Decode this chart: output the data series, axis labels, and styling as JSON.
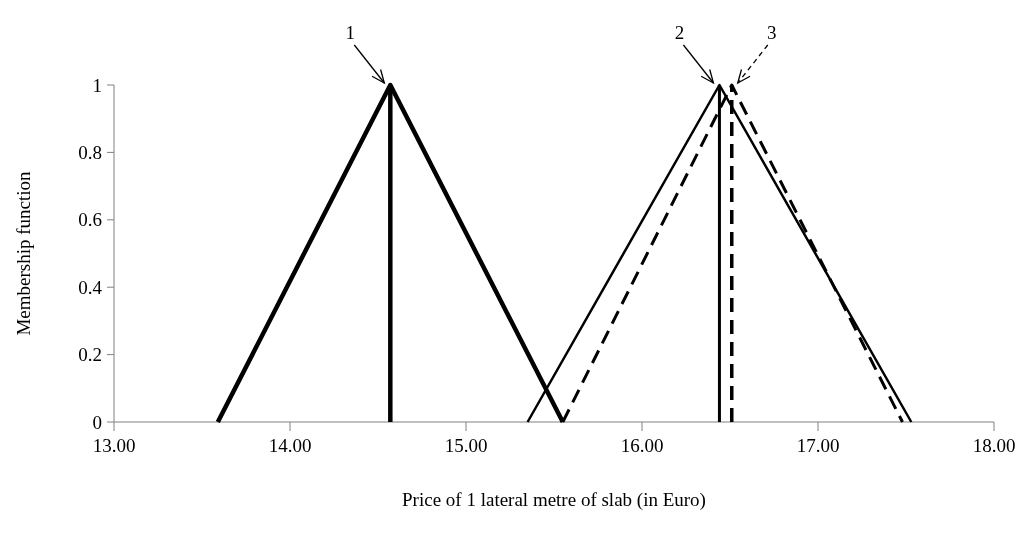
{
  "chart_data": {
    "type": "line",
    "xlabel": "Price of 1 lateral metre of slab (in Euro)",
    "ylabel": "Membership function",
    "xlim": [
      13,
      18
    ],
    "xticks": [
      {
        "value": 13,
        "label": "13.00"
      },
      {
        "value": 14,
        "label": "14.00"
      },
      {
        "value": 15,
        "label": "15.00"
      },
      {
        "value": 16,
        "label": "16.00"
      },
      {
        "value": 17,
        "label": "17.00"
      },
      {
        "value": 18,
        "label": "18.00"
      }
    ],
    "ylim": [
      0,
      1
    ],
    "yticks": [
      0,
      0.2,
      0.4,
      0.6,
      0.8,
      1
    ],
    "marker": "none",
    "series": [
      {
        "color": "#000000",
        "line_style": "solid",
        "x": [
          13.59,
          14.57,
          15.55
        ],
        "values": [
          0,
          1,
          0
        ]
      },
      {
        "color": "#000000",
        "line_style": "solid",
        "x": [
          14.57,
          14.57
        ],
        "values": [
          0,
          1
        ]
      },
      {
        "color": "#000000",
        "line_style": "solid",
        "x": [
          15.35,
          16.44,
          17.53
        ],
        "values": [
          0,
          1,
          0
        ]
      },
      {
        "color": "#000000",
        "line_style": "solid",
        "x": [
          16.44,
          16.44
        ],
        "values": [
          0,
          1
        ]
      },
      {
        "color": "#000000",
        "line_style": "dashed",
        "x": [
          15.55,
          16.51,
          17.48
        ],
        "values": [
          0,
          1,
          0
        ]
      },
      {
        "color": "#000000",
        "line_style": "dashed",
        "x": [
          16.51,
          16.51
        ],
        "values": [
          0,
          1
        ]
      }
    ],
    "annotations": [
      {
        "text": "1",
        "x": 14.57,
        "y": 1
      },
      {
        "text": "2",
        "x": 16.44,
        "y": 1
      },
      {
        "text": "3",
        "x": 16.51,
        "y": 1
      }
    ]
  }
}
